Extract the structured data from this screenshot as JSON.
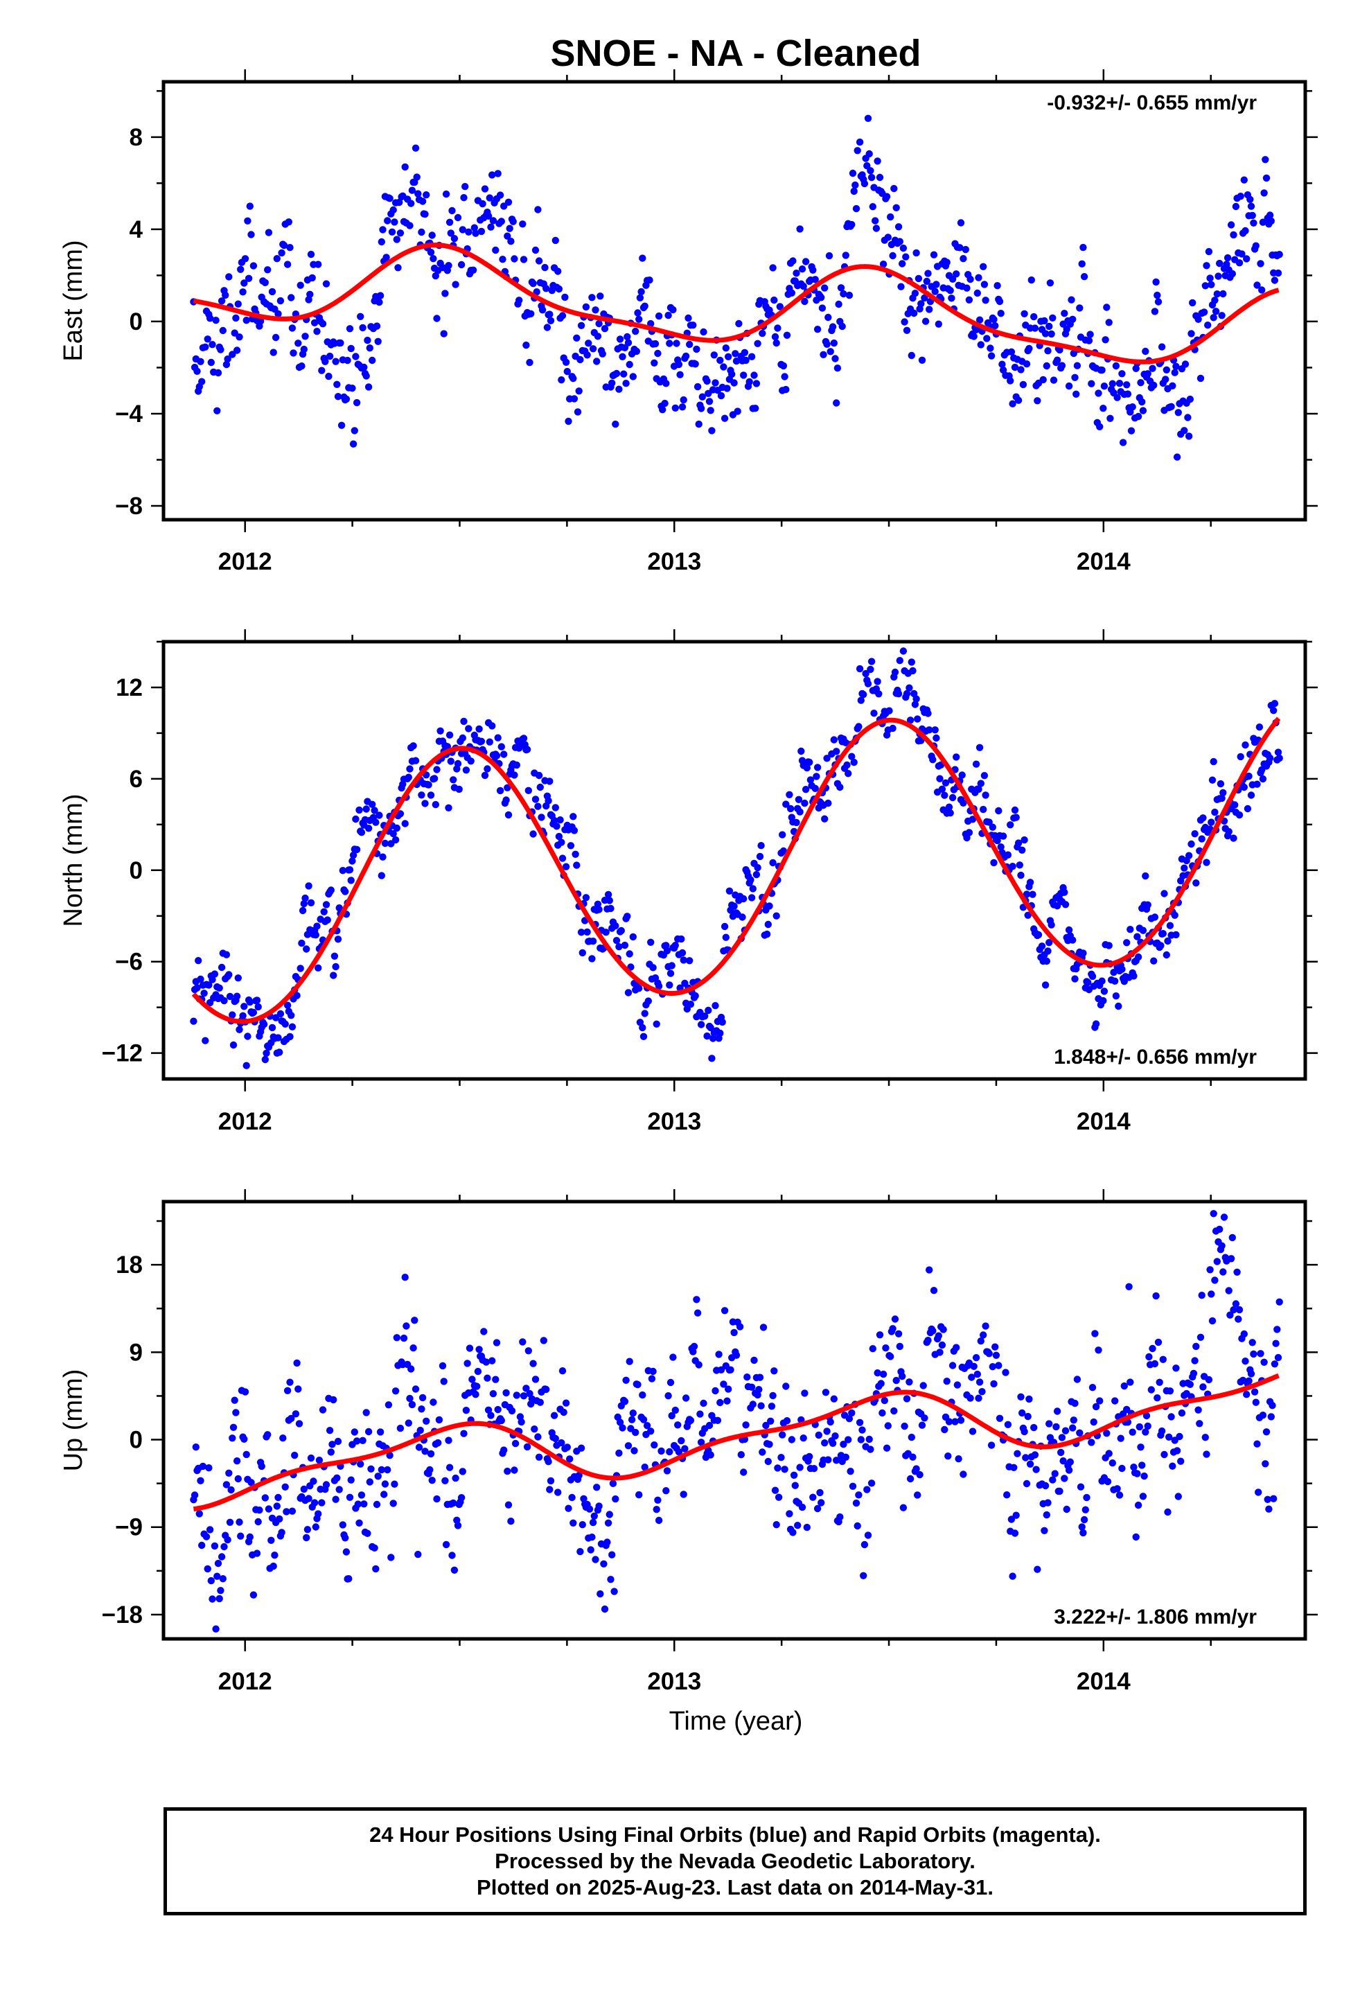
{
  "title": "SNOE  - NA - Cleaned",
  "x_axis_label": "Time (year)",
  "caption": [
    "24 Hour Positions Using Final Orbits (blue) and Rapid Orbits (magenta).",
    "Processed by the Nevada Geodetic Laboratory.",
    "Plotted on 2025-Aug-23. Last data on 2014-May-31."
  ],
  "colors": {
    "data_points": "#0000ff",
    "fit_line": "#ff0000",
    "frame": "#000000",
    "background": "#ffffff"
  },
  "chart_data": [
    {
      "type": "scatter",
      "name": "east",
      "ylabel": "East (mm)",
      "rate_text": "-0.932+/- 0.655 mm/yr",
      "rate_position": "top-right",
      "xlim": [
        2011.81,
        2014.47
      ],
      "ylim": [
        -8.6,
        10.4
      ],
      "x_ticks": [
        2012,
        2013,
        2014
      ],
      "x_tick_labels": [
        "2012",
        "2013",
        "2014"
      ],
      "y_ticks": [
        -8,
        -4,
        0,
        4,
        8
      ],
      "y_tick_labels": [
        "−8",
        "−4",
        "0",
        "4",
        "8"
      ],
      "grid": false,
      "fit_model": {
        "offset": 0.6,
        "slope_mm_per_yr": -0.932,
        "reference_year": 2013.15,
        "annual_sin": 0.2,
        "annual_cos": -1.6,
        "semiannual_sin": -0.4,
        "semiannual_cos": 0.3
      },
      "scatter_model": {
        "noise_sd": 1.5,
        "seed": 11
      },
      "data_range": [
        2011.88,
        2014.41
      ]
    },
    {
      "type": "scatter",
      "name": "north",
      "ylabel": "North (mm)",
      "rate_text": "1.848+/- 0.656 mm/yr",
      "rate_position": "bottom-right",
      "xlim": [
        2011.81,
        2014.47
      ],
      "ylim": [
        -13.7,
        15.0
      ],
      "x_ticks": [
        2012,
        2013,
        2014
      ],
      "x_tick_labels": [
        "2012",
        "2013",
        "2014"
      ],
      "y_ticks": [
        -12,
        -6,
        0,
        6,
        12
      ],
      "y_tick_labels": [
        "−12",
        "−6",
        "0",
        "6",
        "12"
      ],
      "grid": false,
      "fit_model": {
        "offset": 0.4,
        "slope_mm_per_yr": 1.848,
        "reference_year": 2013.15,
        "annual_sin": 0.0,
        "annual_cos": -8.5,
        "semiannual_sin": 0.0,
        "semiannual_cos": 0.3
      },
      "scatter_model": {
        "noise_sd": 1.6,
        "seed": 23
      },
      "data_range": [
        2011.88,
        2014.41
      ]
    },
    {
      "type": "scatter",
      "name": "up",
      "ylabel": "Up (mm)",
      "rate_text": "3.222+/- 1.806 mm/yr",
      "rate_position": "bottom-right",
      "xlim": [
        2011.81,
        2014.47
      ],
      "ylim": [
        -20.5,
        24.5
      ],
      "x_ticks": [
        2012,
        2013,
        2014
      ],
      "x_tick_labels": [
        "2012",
        "2013",
        "2014"
      ],
      "y_ticks": [
        -18,
        -9,
        0,
        9,
        18
      ],
      "y_tick_labels": [
        "−18",
        "−9",
        "0",
        "9",
        "18"
      ],
      "grid": false,
      "fit_model": {
        "offset": 0.4,
        "slope_mm_per_yr": 3.222,
        "reference_year": 2013.15,
        "annual_sin": 1.0,
        "annual_cos": -2.6,
        "semiannual_sin": 0.9,
        "semiannual_cos": 0.6
      },
      "scatter_model": {
        "noise_sd": 5.2,
        "seed": 37
      },
      "data_range": [
        2011.88,
        2014.41
      ]
    }
  ]
}
